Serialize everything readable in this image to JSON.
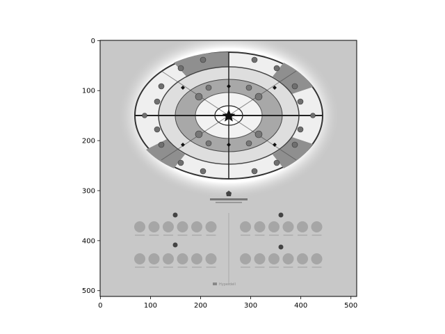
{
  "chart_data": {
    "type": "image",
    "title": "",
    "xlabel": "",
    "ylabel": "",
    "xlim": [
      -0.5,
      511.5
    ],
    "ylim": [
      511.5,
      -0.5
    ],
    "x_ticks": [
      0,
      100,
      200,
      300,
      400,
      500
    ],
    "y_ticks": [
      0,
      100,
      200,
      300,
      400,
      500
    ],
    "x_tick_labels": [
      "0",
      "100",
      "200",
      "300",
      "400",
      "500"
    ],
    "y_tick_labels": [
      "0",
      "100",
      "200",
      "300",
      "400",
      "500"
    ],
    "grid": false,
    "colormap": "gray",
    "image_content": {
      "background": "#c8c8c8",
      "footer_text": "Hyperdell"
    }
  }
}
